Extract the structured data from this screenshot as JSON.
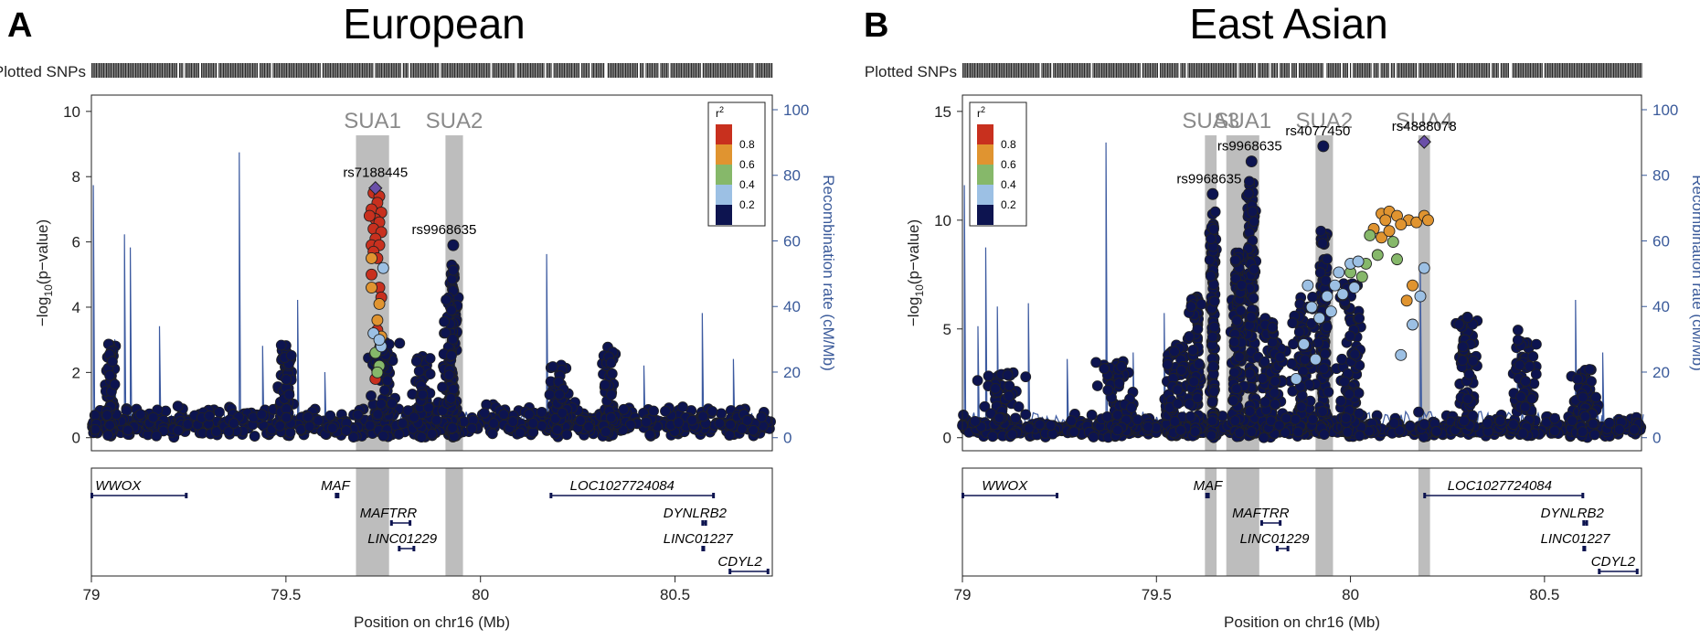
{
  "colors": {
    "recomb": "#3c5aa0",
    "snp_low": "#0d1450",
    "r2_08": "#c8301e",
    "r2_06": "#e09430",
    "r2_04": "#86b86a",
    "r2_02": "#9cc0e4",
    "r2_00": "#0d1450",
    "lead": "#6a4fa8",
    "band": "#bdbdbd"
  },
  "chart_data": [
    {
      "type": "scatter",
      "panel_letter": "A",
      "title": "European",
      "plotted_snps_label": "Plotted SNPs",
      "xlabel": "Position on chr16 (Mb)",
      "ylabel": "-log10(p-value)",
      "ylabel_parts": {
        "pre": "−log",
        "sub": "10",
        "post": "(p−value)"
      },
      "y2label": "Recombination rate (cM/Mb)",
      "xlim": [
        79.0,
        80.75
      ],
      "ylim": [
        -0.4,
        10.5
      ],
      "xticks": [
        79,
        79.5,
        80,
        80.5
      ],
      "xtick_labels": [
        "79",
        "79.5",
        "80",
        "80.5"
      ],
      "yticks": [
        0,
        2,
        4,
        6,
        8,
        10
      ],
      "ytick_labels": [
        "0",
        "2",
        "4",
        "6",
        "8",
        "10"
      ],
      "y2ticks": [
        0,
        20,
        40,
        60,
        80,
        100
      ],
      "y2tick_labels": [
        "0",
        "20",
        "40",
        "60",
        "80",
        "100"
      ],
      "legend": {
        "title": "r",
        "sup": "2",
        "labels": [
          "0.8",
          "0.6",
          "0.4",
          "0.2"
        ]
      },
      "regions": [
        {
          "name": "SUA1",
          "x0": 79.68,
          "x1": 79.765
        },
        {
          "name": "SUA2",
          "x0": 79.91,
          "x1": 79.955
        }
      ],
      "lead_snps": [
        {
          "name": "rs7188445",
          "x": 79.73,
          "y": 7.65,
          "label_dx": 0,
          "color": "lead"
        },
        {
          "name": "rs9968635",
          "x": 79.93,
          "y": 5.9,
          "label_dx": -10,
          "color": "r2_00"
        }
      ],
      "colored_snps": [
        {
          "x": 79.725,
          "y": 7.5,
          "r2": "r2_08"
        },
        {
          "x": 79.74,
          "y": 7.4,
          "r2": "r2_08"
        },
        {
          "x": 79.735,
          "y": 7.2,
          "r2": "r2_08"
        },
        {
          "x": 79.72,
          "y": 7.0,
          "r2": "r2_08"
        },
        {
          "x": 79.745,
          "y": 6.9,
          "r2": "r2_08"
        },
        {
          "x": 79.73,
          "y": 6.7,
          "r2": "r2_08"
        },
        {
          "x": 79.715,
          "y": 6.8,
          "r2": "r2_08"
        },
        {
          "x": 79.74,
          "y": 6.6,
          "r2": "r2_08"
        },
        {
          "x": 79.725,
          "y": 6.4,
          "r2": "r2_08"
        },
        {
          "x": 79.745,
          "y": 6.3,
          "r2": "r2_08"
        },
        {
          "x": 79.73,
          "y": 6.1,
          "r2": "r2_08"
        },
        {
          "x": 79.72,
          "y": 5.9,
          "r2": "r2_08"
        },
        {
          "x": 79.74,
          "y": 5.9,
          "r2": "r2_08"
        },
        {
          "x": 79.725,
          "y": 5.7,
          "r2": "r2_08"
        },
        {
          "x": 79.735,
          "y": 5.5,
          "r2": "r2_08"
        },
        {
          "x": 79.72,
          "y": 5.0,
          "r2": "r2_08"
        },
        {
          "x": 79.74,
          "y": 4.6,
          "r2": "r2_08"
        },
        {
          "x": 79.745,
          "y": 4.3,
          "r2": "r2_08"
        },
        {
          "x": 79.735,
          "y": 3.3,
          "r2": "r2_08"
        },
        {
          "x": 79.73,
          "y": 1.8,
          "r2": "r2_08"
        },
        {
          "x": 79.72,
          "y": 5.5,
          "r2": "r2_06"
        },
        {
          "x": 79.72,
          "y": 4.6,
          "r2": "r2_06"
        },
        {
          "x": 79.74,
          "y": 4.1,
          "r2": "r2_06"
        },
        {
          "x": 79.735,
          "y": 3.6,
          "r2": "r2_06"
        },
        {
          "x": 79.745,
          "y": 3.1,
          "r2": "r2_06"
        },
        {
          "x": 79.73,
          "y": 2.6,
          "r2": "r2_04"
        },
        {
          "x": 79.74,
          "y": 2.2,
          "r2": "r2_04"
        },
        {
          "x": 79.735,
          "y": 2.0,
          "r2": "r2_04"
        },
        {
          "x": 79.75,
          "y": 5.2,
          "r2": "r2_02"
        },
        {
          "x": 79.725,
          "y": 3.2,
          "r2": "r2_02"
        },
        {
          "x": 79.745,
          "y": 2.8,
          "r2": "r2_02"
        },
        {
          "x": 79.74,
          "y": 3.0,
          "r2": "r2_02"
        }
      ],
      "peaks": [
        {
          "x": 79.93,
          "y": 5.3,
          "w": 0.02
        },
        {
          "x": 79.92,
          "y": 4.3,
          "w": 0.03
        },
        {
          "x": 79.75,
          "y": 3.0,
          "w": 0.05
        },
        {
          "x": 79.85,
          "y": 2.5,
          "w": 0.05
        },
        {
          "x": 79.05,
          "y": 2.9,
          "w": 0.02
        },
        {
          "x": 79.5,
          "y": 2.9,
          "w": 0.03
        },
        {
          "x": 80.33,
          "y": 2.8,
          "w": 0.03
        },
        {
          "x": 80.2,
          "y": 2.3,
          "w": 0.05
        }
      ],
      "recomb_spikes": [
        {
          "x": 79.005,
          "y": 77
        },
        {
          "x": 79.06,
          "y": 30
        },
        {
          "x": 79.085,
          "y": 62
        },
        {
          "x": 79.1,
          "y": 58
        },
        {
          "x": 79.175,
          "y": 34
        },
        {
          "x": 79.38,
          "y": 87
        },
        {
          "x": 79.44,
          "y": 28
        },
        {
          "x": 79.53,
          "y": 42
        },
        {
          "x": 79.6,
          "y": 20
        },
        {
          "x": 80.17,
          "y": 56
        },
        {
          "x": 80.42,
          "y": 22
        },
        {
          "x": 80.57,
          "y": 38
        },
        {
          "x": 80.65,
          "y": 24
        }
      ],
      "genes": [
        {
          "name": "WWOX",
          "row": 0,
          "x0": 79.0,
          "x1": 79.245,
          "lx": 79.01
        },
        {
          "name": "MAF",
          "row": 0,
          "x0": 79.628,
          "x1": 79.635,
          "lx": 79.59
        },
        {
          "name": "LOC1027724084",
          "row": 0,
          "x0": 80.18,
          "x1": 80.6,
          "lx": 80.23
        },
        {
          "name": "MAFTRR",
          "row": 1,
          "x0": 79.77,
          "x1": 79.82,
          "lx": 79.69
        },
        {
          "name": "DYNLRB2",
          "row": 1,
          "x0": 80.57,
          "x1": 80.58,
          "lx": 80.47
        },
        {
          "name": "LINC01229",
          "row": 2,
          "x0": 79.79,
          "x1": 79.83,
          "lx": 79.71
        },
        {
          "name": "LINC01227",
          "row": 2,
          "x0": 80.57,
          "x1": 80.575,
          "lx": 80.47
        },
        {
          "name": "CDYL2",
          "row": 3,
          "x0": 80.64,
          "x1": 80.74,
          "lx": 80.61
        }
      ]
    },
    {
      "type": "scatter",
      "panel_letter": "B",
      "title": "East Asian",
      "plotted_snps_label": "Plotted SNPs",
      "xlabel": "Position on chr16 (Mb)",
      "ylabel": "-log10(p-value)",
      "ylabel_parts": {
        "pre": "−log",
        "sub": "10",
        "post": "(p−value)"
      },
      "y2label": "Recombination rate (cM/Mb)",
      "xlim": [
        79.0,
        80.75
      ],
      "ylim": [
        -0.6,
        15.75
      ],
      "xticks": [
        79,
        79.5,
        80,
        80.5
      ],
      "xtick_labels": [
        "79",
        "79.5",
        "80",
        "80.5"
      ],
      "yticks": [
        0,
        5,
        10,
        15
      ],
      "ytick_labels": [
        "0",
        "5",
        "10",
        "15"
      ],
      "y2ticks": [
        0,
        20,
        40,
        60,
        80,
        100
      ],
      "y2tick_labels": [
        "0",
        "20",
        "40",
        "60",
        "80",
        "100"
      ],
      "legend": {
        "title": "r",
        "sup": "2",
        "labels": [
          "0.8",
          "0.6",
          "0.4",
          "0.2"
        ]
      },
      "regions": [
        {
          "name": "SUA3",
          "x0": 79.625,
          "x1": 79.655
        },
        {
          "name": "SUA1",
          "x0": 79.68,
          "x1": 79.765
        },
        {
          "name": "SUA2",
          "x0": 79.91,
          "x1": 79.955
        },
        {
          "name": "SUA4",
          "x0": 80.175,
          "x1": 80.205
        }
      ],
      "lead_snps": [
        {
          "name": "rs9968635",
          "x": 79.645,
          "y": 11.2,
          "label_dx": -4,
          "color": "r2_00"
        },
        {
          "name": "rs9968635",
          "x": 79.745,
          "y": 12.7,
          "label_dx": -2,
          "color": "r2_00"
        },
        {
          "name": "rs4077450",
          "x": 79.93,
          "y": 13.4,
          "label_dx": -6,
          "color": "r2_00"
        },
        {
          "name": "rs4888078",
          "x": 80.19,
          "y": 13.6,
          "label_dx": 0,
          "color": "lead"
        }
      ],
      "colored_snps": [
        {
          "x": 80.08,
          "y": 10.3,
          "r2": "r2_06"
        },
        {
          "x": 80.1,
          "y": 10.4,
          "r2": "r2_06"
        },
        {
          "x": 80.12,
          "y": 10.2,
          "r2": "r2_06"
        },
        {
          "x": 80.09,
          "y": 10.0,
          "r2": "r2_06"
        },
        {
          "x": 80.15,
          "y": 10.0,
          "r2": "r2_06"
        },
        {
          "x": 80.17,
          "y": 9.9,
          "r2": "r2_06"
        },
        {
          "x": 80.19,
          "y": 10.2,
          "r2": "r2_06"
        },
        {
          "x": 80.2,
          "y": 10.0,
          "r2": "r2_06"
        },
        {
          "x": 80.06,
          "y": 9.6,
          "r2": "r2_06"
        },
        {
          "x": 80.13,
          "y": 9.8,
          "r2": "r2_06"
        },
        {
          "x": 80.08,
          "y": 9.2,
          "r2": "r2_06"
        },
        {
          "x": 80.16,
          "y": 7.0,
          "r2": "r2_06"
        },
        {
          "x": 80.145,
          "y": 6.3,
          "r2": "r2_06"
        },
        {
          "x": 80.1,
          "y": 9.5,
          "r2": "r2_06"
        },
        {
          "x": 80.05,
          "y": 9.3,
          "r2": "r2_04"
        },
        {
          "x": 80.07,
          "y": 8.4,
          "r2": "r2_04"
        },
        {
          "x": 80.04,
          "y": 8.0,
          "r2": "r2_04"
        },
        {
          "x": 80.11,
          "y": 9.0,
          "r2": "r2_04"
        },
        {
          "x": 80.03,
          "y": 7.4,
          "r2": "r2_04"
        },
        {
          "x": 80.0,
          "y": 7.6,
          "r2": "r2_04"
        },
        {
          "x": 80.12,
          "y": 8.2,
          "r2": "r2_04"
        },
        {
          "x": 79.9,
          "y": 6.0,
          "r2": "r2_02"
        },
        {
          "x": 79.92,
          "y": 5.5,
          "r2": "r2_02"
        },
        {
          "x": 79.94,
          "y": 6.5,
          "r2": "r2_02"
        },
        {
          "x": 79.96,
          "y": 7.0,
          "r2": "r2_02"
        },
        {
          "x": 79.98,
          "y": 6.6,
          "r2": "r2_02"
        },
        {
          "x": 80.0,
          "y": 8.0,
          "r2": "r2_02"
        },
        {
          "x": 80.02,
          "y": 8.1,
          "r2": "r2_02"
        },
        {
          "x": 80.01,
          "y": 6.9,
          "r2": "r2_02"
        },
        {
          "x": 80.19,
          "y": 7.8,
          "r2": "r2_02"
        },
        {
          "x": 80.18,
          "y": 6.5,
          "r2": "r2_02"
        },
        {
          "x": 80.16,
          "y": 5.2,
          "r2": "r2_02"
        },
        {
          "x": 80.13,
          "y": 3.8,
          "r2": "r2_02"
        },
        {
          "x": 79.88,
          "y": 4.3,
          "r2": "r2_02"
        },
        {
          "x": 79.91,
          "y": 3.6,
          "r2": "r2_02"
        },
        {
          "x": 79.86,
          "y": 2.7,
          "r2": "r2_02"
        },
        {
          "x": 79.95,
          "y": 5.8,
          "r2": "r2_02"
        },
        {
          "x": 79.97,
          "y": 7.6,
          "r2": "r2_02"
        },
        {
          "x": 79.89,
          "y": 7.0,
          "r2": "r2_02"
        }
      ],
      "peaks": [
        {
          "x": 79.645,
          "y": 10.5,
          "w": 0.012
        },
        {
          "x": 79.745,
          "y": 11.8,
          "w": 0.02
        },
        {
          "x": 79.71,
          "y": 8.5,
          "w": 0.025
        },
        {
          "x": 79.93,
          "y": 9.5,
          "w": 0.02
        },
        {
          "x": 79.88,
          "y": 6.5,
          "w": 0.05
        },
        {
          "x": 80.0,
          "y": 7.2,
          "w": 0.05
        },
        {
          "x": 79.8,
          "y": 5.5,
          "w": 0.06
        },
        {
          "x": 80.3,
          "y": 5.6,
          "w": 0.04
        },
        {
          "x": 80.45,
          "y": 5.0,
          "w": 0.05
        },
        {
          "x": 79.55,
          "y": 4.4,
          "w": 0.05
        },
        {
          "x": 79.4,
          "y": 3.5,
          "w": 0.08
        },
        {
          "x": 79.1,
          "y": 3.0,
          "w": 0.08
        },
        {
          "x": 80.6,
          "y": 3.2,
          "w": 0.06
        },
        {
          "x": 79.6,
          "y": 6.5,
          "w": 0.03
        }
      ],
      "recomb_spikes": [
        {
          "x": 79.005,
          "y": 77
        },
        {
          "x": 79.04,
          "y": 34
        },
        {
          "x": 79.06,
          "y": 58
        },
        {
          "x": 79.09,
          "y": 40
        },
        {
          "x": 79.17,
          "y": 41
        },
        {
          "x": 79.27,
          "y": 24
        },
        {
          "x": 79.37,
          "y": 90
        },
        {
          "x": 79.44,
          "y": 26
        },
        {
          "x": 79.52,
          "y": 38
        },
        {
          "x": 79.59,
          "y": 22
        },
        {
          "x": 80.18,
          "y": 52
        },
        {
          "x": 80.43,
          "y": 28
        },
        {
          "x": 80.58,
          "y": 42
        },
        {
          "x": 80.65,
          "y": 26
        }
      ],
      "genes": [
        {
          "name": "WWOX",
          "row": 0,
          "x0": 79.0,
          "x1": 79.245,
          "lx": 79.05
        },
        {
          "name": "MAF",
          "row": 0,
          "x0": 79.628,
          "x1": 79.635,
          "lx": 79.595
        },
        {
          "name": "LOC1027724084",
          "row": 0,
          "x0": 80.19,
          "x1": 80.6,
          "lx": 80.25
        },
        {
          "name": "MAFTRR",
          "row": 1,
          "x0": 79.77,
          "x1": 79.82,
          "lx": 79.695
        },
        {
          "name": "DYNLRB2",
          "row": 1,
          "x0": 80.6,
          "x1": 80.61,
          "lx": 80.49
        },
        {
          "name": "LINC01229",
          "row": 2,
          "x0": 79.81,
          "x1": 79.84,
          "lx": 79.715
        },
        {
          "name": "LINC01227",
          "row": 2,
          "x0": 80.6,
          "x1": 80.605,
          "lx": 80.49
        },
        {
          "name": "CDYL2",
          "row": 3,
          "x0": 80.64,
          "x1": 80.74,
          "lx": 80.62
        }
      ]
    }
  ]
}
